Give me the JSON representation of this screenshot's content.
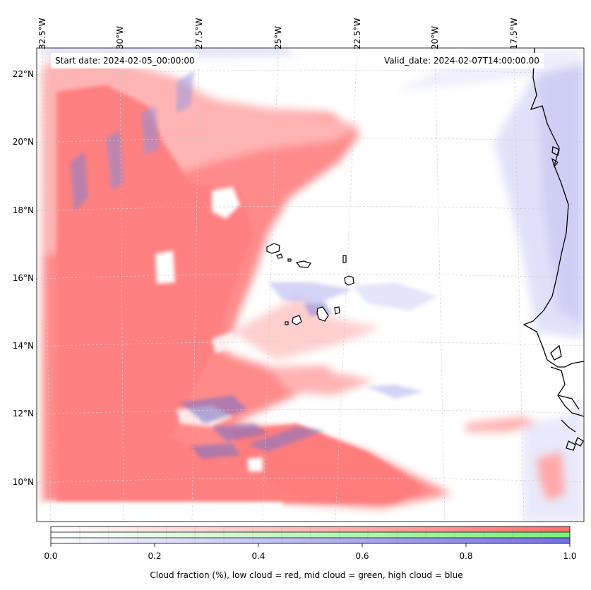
{
  "map": {
    "start_date": "Start date: 2024-02-05_00:00:00",
    "valid_date": "Valid_date: 2024-02-07T14:00:00.00",
    "longitude_labels": [
      "32.5°W",
      "30°W",
      "27.5°W",
      "25°W",
      "22.5°W",
      "20°W",
      "17.5°W"
    ],
    "latitude_labels": [
      "22°N",
      "20°N",
      "18°N",
      "16°N",
      "14°N",
      "12°N",
      "10°N"
    ],
    "layers": {
      "low_cloud_color": "#ff8080",
      "mid_cloud_color": "#80ff80",
      "high_cloud_color": "#8080e6",
      "coastline_color": "#000000"
    }
  },
  "colorbar": {
    "ticks": [
      "0.0",
      "0.2",
      "0.4",
      "0.6",
      "0.8",
      "1.0"
    ],
    "caption": "Cloud fraction (%), low cloud = red, mid cloud = green, high cloud = blue"
  }
}
